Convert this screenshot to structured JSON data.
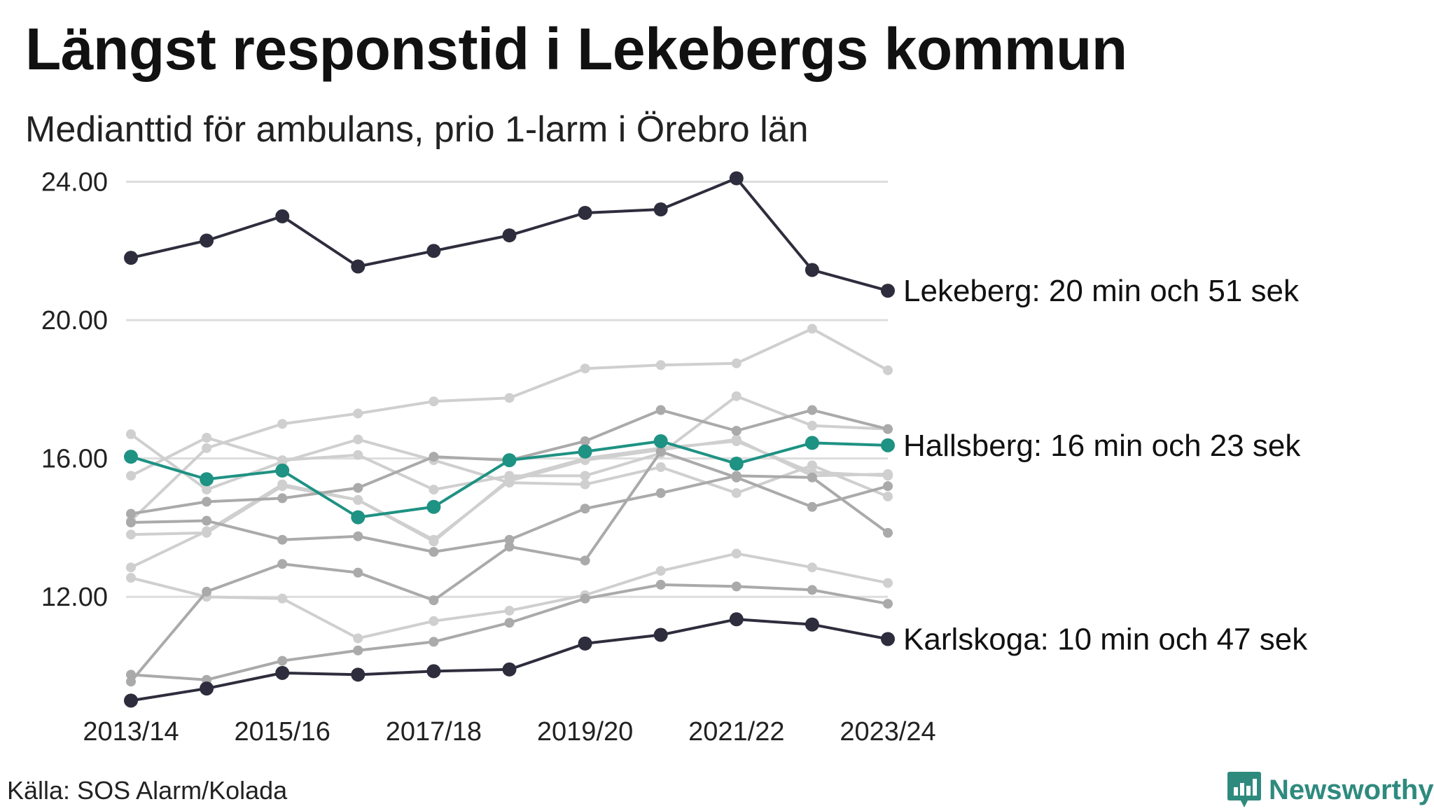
{
  "title": "Längst responstid i Lekebergs kommun",
  "subtitle": "Medianttid för ambulans, prio 1-larm i Örebro län",
  "source": "Källa: SOS Alarm/Kolada",
  "brand": "Newsworthy",
  "colors": {
    "highlight_dark": "#2e2d3d",
    "highlight_teal": "#1e9283",
    "background_light": "#cfcfcf",
    "background_mid": "#aaaaaa",
    "grid": "#dddddd",
    "brand": "#2f8a7e"
  },
  "chart_data": {
    "type": "line",
    "title": "Längst responstid i Lekebergs kommun",
    "subtitle": "Medianttid för ambulans, prio 1-larm i Örebro län",
    "x": [
      "2013/14",
      "2014/15",
      "2015/16",
      "2016/17",
      "2017/18",
      "2018/19",
      "2019/20",
      "2020/21",
      "2021/22",
      "2022/23",
      "2023/24"
    ],
    "x_tick_labels": [
      "2013/14",
      "2015/16",
      "2017/18",
      "2019/20",
      "2021/22",
      "2023/24"
    ],
    "y_ticks": [
      12,
      16,
      20,
      24
    ],
    "y_tick_labels": [
      "12.00",
      "16.00",
      "20.00",
      "24.00"
    ],
    "ylim": [
      8.4,
      24.8
    ],
    "grid": true,
    "highlighted_series": [
      {
        "label": "Lekeberg: 20 min och 51 sek",
        "color": "#2e2d3d",
        "values": [
          21.8,
          22.3,
          23.0,
          21.55,
          22.0,
          22.45,
          23.1,
          23.2,
          24.1,
          21.45,
          20.85
        ]
      },
      {
        "label": "Hallsberg: 16 min och 23 sek",
        "color": "#1e9283",
        "values": [
          16.05,
          15.4,
          15.65,
          14.3,
          14.6,
          15.95,
          16.2,
          16.5,
          15.85,
          16.45,
          16.38
        ]
      },
      {
        "label": "Karlskoga: 10 min och 47 sek",
        "color": "#2e2d3d",
        "values": [
          9.0,
          9.35,
          9.8,
          9.75,
          9.85,
          9.9,
          10.65,
          10.9,
          11.35,
          11.2,
          10.78
        ]
      }
    ],
    "background_series": [
      {
        "color": "#cfcfcf",
        "values": [
          14.2,
          16.3,
          17.0,
          17.3,
          17.65,
          17.75,
          18.6,
          18.7,
          18.75,
          19.75,
          18.55
        ]
      },
      {
        "color": "#cfcfcf",
        "values": [
          16.7,
          15.1,
          15.9,
          16.55,
          15.95,
          15.3,
          15.25,
          15.75,
          15.0,
          15.8,
          14.9
        ]
      },
      {
        "color": "#cfcfcf",
        "values": [
          15.5,
          16.6,
          15.95,
          16.1,
          15.1,
          15.5,
          15.5,
          16.15,
          17.8,
          16.95,
          16.85
        ]
      },
      {
        "color": "#cfcfcf",
        "values": [
          13.8,
          13.85,
          15.2,
          14.8,
          13.6,
          15.4,
          16.0,
          16.3,
          16.5,
          15.6,
          15.5
        ]
      },
      {
        "color": "#cfcfcf",
        "values": [
          12.85,
          13.9,
          15.25,
          14.8,
          13.65,
          15.35,
          15.95,
          16.25,
          16.55,
          15.5,
          15.55
        ]
      },
      {
        "color": "#cfcfcf",
        "values": [
          12.55,
          12.0,
          11.95,
          10.8,
          11.3,
          11.6,
          12.05,
          12.75,
          13.25,
          12.85,
          12.4
        ]
      },
      {
        "color": "#aaaaaa",
        "values": [
          14.4,
          14.75,
          14.85,
          15.15,
          16.05,
          15.95,
          16.5,
          17.4,
          16.8,
          17.4,
          16.85
        ]
      },
      {
        "color": "#aaaaaa",
        "values": [
          14.15,
          14.2,
          13.65,
          13.75,
          13.3,
          13.65,
          14.55,
          15.0,
          15.5,
          15.45,
          13.85
        ]
      },
      {
        "color": "#aaaaaa",
        "values": [
          9.55,
          12.15,
          12.95,
          12.7,
          11.9,
          13.45,
          13.05,
          16.2,
          15.45,
          14.6,
          15.2
        ]
      },
      {
        "color": "#aaaaaa",
        "values": [
          9.75,
          9.6,
          10.15,
          10.45,
          10.7,
          11.25,
          11.95,
          12.35,
          12.3,
          12.2,
          11.8
        ]
      }
    ]
  }
}
